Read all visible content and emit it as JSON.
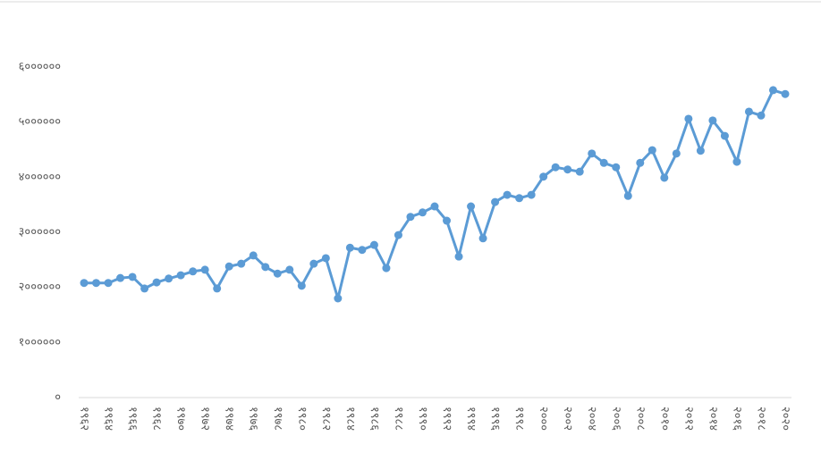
{
  "chart_data": {
    "type": "line",
    "categories": [
      "१९६२",
      null,
      "१९६४",
      null,
      "१९६६",
      null,
      "१९६८",
      null,
      "१९७०",
      null,
      "१९७२",
      null,
      "१९७४",
      null,
      "१९७६",
      null,
      "१९७८",
      null,
      "१९८०",
      null,
      "१९८२",
      null,
      "१९८४",
      null,
      "१९८६",
      null,
      "१९८८",
      null,
      "१९९०",
      null,
      "१९९२",
      null,
      "१९९४",
      null,
      "१९९६",
      null,
      "१९९८",
      null,
      "२०००",
      null,
      "२००२",
      null,
      "२००४",
      null,
      "२००६",
      null,
      "२००८",
      null,
      "२०१०",
      null,
      "२०१२",
      null,
      "२०१४",
      null,
      "२०१६",
      null,
      "२०१८",
      null,
      "२०२०"
    ],
    "values": [
      2080000,
      2080000,
      2080000,
      2170000,
      2190000,
      1980000,
      2090000,
      2160000,
      2220000,
      2290000,
      2320000,
      1980000,
      2380000,
      2430000,
      2580000,
      2370000,
      2250000,
      2320000,
      2030000,
      2430000,
      2530000,
      1800000,
      2720000,
      2680000,
      2770000,
      2350000,
      2950000,
      3280000,
      3360000,
      3470000,
      3210000,
      2560000,
      3470000,
      2890000,
      3550000,
      3680000,
      3620000,
      3680000,
      4010000,
      4180000,
      4140000,
      4100000,
      4430000,
      4260000,
      4180000,
      3660000,
      4260000,
      4490000,
      3990000,
      4430000,
      5060000,
      4480000,
      5030000,
      4750000,
      4280000,
      5190000,
      5120000,
      5580000,
      5510000
    ],
    "color": "#5b9bd5",
    "ylim": [
      0,
      6000000
    ],
    "yticks": [
      {
        "value": 0,
        "label": "०"
      },
      {
        "value": 1000000,
        "label": "१००००००"
      },
      {
        "value": 2000000,
        "label": "२००००००"
      },
      {
        "value": 3000000,
        "label": "३००००००"
      },
      {
        "value": 4000000,
        "label": "४००००००"
      },
      {
        "value": 5000000,
        "label": "५००००००"
      },
      {
        "value": 6000000,
        "label": "६००००००"
      }
    ],
    "grid": false
  }
}
